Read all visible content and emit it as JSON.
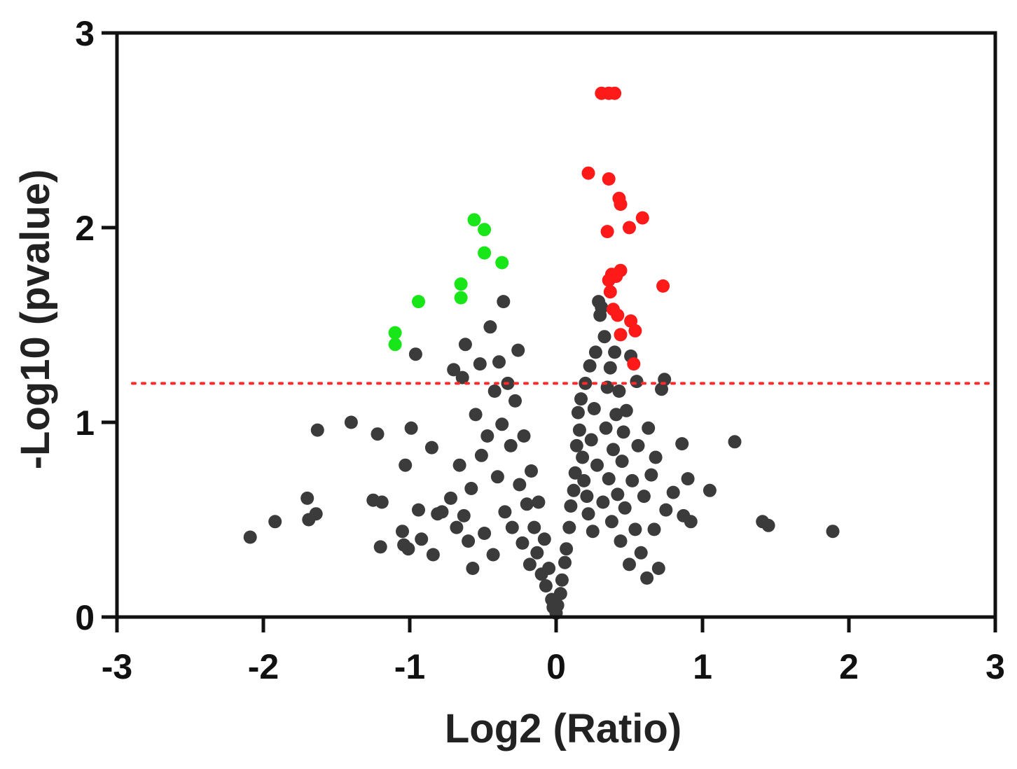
{
  "chart_data": {
    "type": "scatter",
    "title": "",
    "xlabel": "Log2 (Ratio)",
    "ylabel": "-Log10 (pvalue)",
    "xlim": [
      -3,
      3
    ],
    "ylim": [
      0,
      3
    ],
    "xticks": [
      "-3",
      "-2",
      "-1",
      "0",
      "1",
      "2",
      "3"
    ],
    "yticks": [
      "0",
      "1",
      "2",
      "3"
    ],
    "threshold_line": {
      "y": 1.2,
      "style": "dotted",
      "color": "#ff2a2a"
    },
    "grid": false,
    "legend": "none",
    "series": [
      {
        "color": "#ff1a1a",
        "points": [
          [
            0.31,
            2.69
          ],
          [
            0.36,
            2.69
          ],
          [
            0.4,
            2.69
          ],
          [
            0.22,
            2.28
          ],
          [
            0.36,
            2.25
          ],
          [
            0.43,
            2.15
          ],
          [
            0.44,
            2.12
          ],
          [
            0.59,
            2.05
          ],
          [
            0.5,
            2.0
          ],
          [
            0.35,
            1.98
          ],
          [
            0.44,
            1.78
          ],
          [
            0.38,
            1.76
          ],
          [
            0.36,
            1.73
          ],
          [
            0.41,
            1.75
          ],
          [
            0.37,
            1.67
          ],
          [
            0.73,
            1.7
          ],
          [
            0.39,
            1.58
          ],
          [
            0.42,
            1.55
          ],
          [
            0.51,
            1.52
          ],
          [
            0.54,
            1.47
          ],
          [
            0.44,
            1.45
          ],
          [
            0.53,
            1.3
          ]
        ]
      },
      {
        "color": "#19e619",
        "points": [
          [
            -0.56,
            2.04
          ],
          [
            -0.49,
            1.99
          ],
          [
            -0.49,
            1.87
          ],
          [
            -0.37,
            1.82
          ],
          [
            -0.65,
            1.71
          ],
          [
            -0.65,
            1.64
          ],
          [
            -0.94,
            1.62
          ],
          [
            -1.1,
            1.46
          ],
          [
            -1.1,
            1.4
          ]
        ]
      },
      {
        "color": "#3b3b3b",
        "points": [
          [
            -2.09,
            0.41
          ],
          [
            -1.92,
            0.49
          ],
          [
            -1.7,
            0.61
          ],
          [
            -1.69,
            0.5
          ],
          [
            -1.64,
            0.53
          ],
          [
            -1.63,
            0.96
          ],
          [
            -1.4,
            1.0
          ],
          [
            -1.25,
            0.6
          ],
          [
            -1.19,
            0.59
          ],
          [
            -1.2,
            0.36
          ],
          [
            -1.22,
            0.94
          ],
          [
            -1.05,
            0.44
          ],
          [
            -1.04,
            0.37
          ],
          [
            -1.03,
            0.78
          ],
          [
            -1.01,
            0.35
          ],
          [
            -0.99,
            0.97
          ],
          [
            -0.96,
            1.35
          ],
          [
            -0.94,
            0.55
          ],
          [
            -0.92,
            0.4
          ],
          [
            -0.85,
            0.87
          ],
          [
            -0.84,
            0.32
          ],
          [
            -0.81,
            0.53
          ],
          [
            -0.78,
            0.54
          ],
          [
            -0.72,
            0.61
          ],
          [
            -0.7,
            1.27
          ],
          [
            -0.68,
            0.46
          ],
          [
            -0.66,
            0.78
          ],
          [
            -0.64,
            1.23
          ],
          [
            -0.63,
            0.52
          ],
          [
            -0.62,
            1.4
          ],
          [
            -0.6,
            0.39
          ],
          [
            -0.58,
            0.66
          ],
          [
            -0.57,
            0.25
          ],
          [
            -0.55,
            1.04
          ],
          [
            -0.52,
            1.3
          ],
          [
            -0.51,
            0.83
          ],
          [
            -0.49,
            0.43
          ],
          [
            -0.47,
            0.93
          ],
          [
            -0.45,
            1.49
          ],
          [
            -0.43,
            0.32
          ],
          [
            -0.42,
            1.16
          ],
          [
            -0.4,
            0.72
          ],
          [
            -0.39,
            1.31
          ],
          [
            -0.37,
            0.99
          ],
          [
            -0.36,
            1.62
          ],
          [
            -0.35,
            0.54
          ],
          [
            -0.33,
            1.2
          ],
          [
            -0.31,
            0.88
          ],
          [
            -0.3,
            0.46
          ],
          [
            -0.28,
            1.11
          ],
          [
            -0.26,
            1.37
          ],
          [
            -0.25,
            0.68
          ],
          [
            -0.23,
            0.38
          ],
          [
            -0.22,
            0.93
          ],
          [
            -0.2,
            0.58
          ],
          [
            -0.18,
            0.27
          ],
          [
            -0.17,
            0.75
          ],
          [
            -0.15,
            0.46
          ],
          [
            -0.13,
            0.33
          ],
          [
            -0.12,
            0.59
          ],
          [
            -0.1,
            0.22
          ],
          [
            -0.08,
            0.4
          ],
          [
            -0.07,
            0.16
          ],
          [
            -0.05,
            0.25
          ],
          [
            -0.03,
            0.09
          ],
          [
            -0.02,
            0.05
          ],
          [
            0.0,
            0.02
          ],
          [
            0.01,
            0.06
          ],
          [
            0.03,
            0.12
          ],
          [
            0.04,
            0.19
          ],
          [
            0.06,
            0.28
          ],
          [
            0.07,
            0.35
          ],
          [
            0.09,
            0.46
          ],
          [
            0.1,
            0.57
          ],
          [
            0.12,
            0.65
          ],
          [
            0.13,
            0.74
          ],
          [
            0.14,
            0.88
          ],
          [
            0.15,
            1.05
          ],
          [
            0.16,
            0.96
          ],
          [
            0.17,
            1.12
          ],
          [
            0.18,
            0.82
          ],
          [
            0.19,
            0.7
          ],
          [
            0.2,
            1.2
          ],
          [
            0.21,
            0.62
          ],
          [
            0.22,
            0.53
          ],
          [
            0.23,
            1.29
          ],
          [
            0.24,
            0.91
          ],
          [
            0.25,
            0.44
          ],
          [
            0.26,
            1.07
          ],
          [
            0.27,
            1.36
          ],
          [
            0.28,
            0.78
          ],
          [
            0.29,
            1.62
          ],
          [
            0.3,
            1.55
          ],
          [
            0.31,
            1.59
          ],
          [
            0.32,
            0.59
          ],
          [
            0.33,
            1.44
          ],
          [
            0.34,
            0.97
          ],
          [
            0.35,
            1.18
          ],
          [
            0.36,
            0.71
          ],
          [
            0.37,
            1.28
          ],
          [
            0.38,
            0.49
          ],
          [
            0.39,
            0.86
          ],
          [
            0.4,
            1.36
          ],
          [
            0.41,
            1.04
          ],
          [
            0.42,
            0.63
          ],
          [
            0.43,
            1.16
          ],
          [
            0.44,
            0.39
          ],
          [
            0.45,
            0.8
          ],
          [
            0.46,
            0.95
          ],
          [
            0.47,
            0.56
          ],
          [
            0.48,
            1.06
          ],
          [
            0.5,
            0.27
          ],
          [
            0.51,
            1.34
          ],
          [
            0.52,
            0.7
          ],
          [
            0.54,
            0.45
          ],
          [
            0.55,
            1.21
          ],
          [
            0.56,
            0.88
          ],
          [
            0.58,
            0.33
          ],
          [
            0.6,
            0.62
          ],
          [
            0.62,
            0.2
          ],
          [
            0.63,
            0.97
          ],
          [
            0.65,
            0.73
          ],
          [
            0.67,
            0.45
          ],
          [
            0.68,
            0.82
          ],
          [
            0.7,
            0.25
          ],
          [
            0.72,
            1.17
          ],
          [
            0.74,
            1.22
          ],
          [
            0.75,
            0.55
          ],
          [
            0.8,
            0.64
          ],
          [
            0.86,
            0.89
          ],
          [
            0.87,
            0.52
          ],
          [
            0.9,
            0.71
          ],
          [
            0.92,
            0.49
          ],
          [
            1.05,
            0.65
          ],
          [
            1.22,
            0.9
          ],
          [
            1.41,
            0.49
          ],
          [
            1.45,
            0.47
          ],
          [
            1.89,
            0.44
          ]
        ]
      }
    ]
  }
}
